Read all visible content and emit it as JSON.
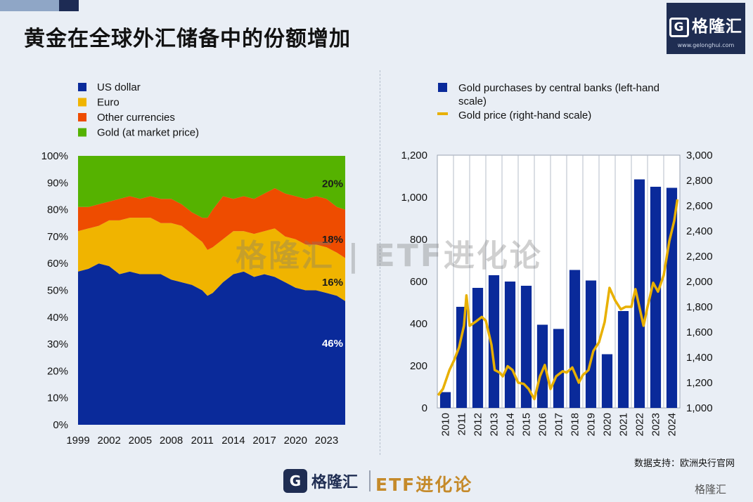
{
  "header": {
    "title": "黄金在全球外汇储备中的份额增加",
    "logo_text": "格隆汇",
    "logo_url": "www.gelonghui.com"
  },
  "colors": {
    "usd": "#0a2a9a",
    "euro": "#f0b400",
    "other": "#ee4c00",
    "gold": "#55b200",
    "bar": "#0a2a9a",
    "gold_price": "#e8b000"
  },
  "chart_data": [
    {
      "type": "area",
      "stacked": true,
      "percent": true,
      "x_ticks": [
        "1999",
        "2002",
        "2005",
        "2008",
        "2011",
        "2014",
        "2017",
        "2020",
        "2023"
      ],
      "y_ticks": [
        "0%",
        "10%",
        "20%",
        "30%",
        "40%",
        "50%",
        "60%",
        "70%",
        "80%",
        "90%",
        "100%"
      ],
      "ylim": [
        0,
        100
      ],
      "xlim": [
        1999,
        2024.8
      ],
      "legend": [
        "US dollar",
        "Euro",
        "Other currencies",
        "Gold (at market price)"
      ],
      "legend_position": "top-left",
      "x": [
        1999,
        2000,
        2001,
        2002,
        2003,
        2004,
        2005,
        2006,
        2007,
        2008,
        2009,
        2010,
        2011,
        2011.5,
        2012,
        2013,
        2014,
        2015,
        2016,
        2017,
        2018,
        2019,
        2020,
        2021,
        2022,
        2023,
        2024,
        2024.8
      ],
      "series": [
        {
          "name": "US dollar",
          "values": [
            57,
            58,
            60,
            59,
            56,
            57,
            56,
            56,
            56,
            54,
            53,
            52,
            50,
            48,
            49,
            53,
            56,
            57,
            55,
            56,
            55,
            53,
            51,
            50,
            50,
            49,
            48,
            46
          ]
        },
        {
          "name": "Euro",
          "values": [
            15,
            15,
            14,
            17,
            20,
            20,
            21,
            21,
            19,
            21,
            21,
            19,
            18,
            17,
            17,
            16,
            16,
            15,
            16,
            16,
            18,
            17,
            18,
            17,
            17,
            17,
            16,
            16
          ]
        },
        {
          "name": "Other currencies",
          "values": [
            9,
            8,
            8,
            7,
            8,
            8,
            7,
            8,
            9,
            9,
            8,
            8,
            9,
            12,
            14,
            16,
            12,
            13,
            13,
            14,
            15,
            16,
            16,
            17,
            18,
            18,
            17,
            18
          ]
        },
        {
          "name": "Gold (at market price)",
          "values": [
            19,
            19,
            18,
            17,
            16,
            15,
            16,
            15,
            16,
            16,
            18,
            21,
            23,
            23,
            20,
            15,
            16,
            15,
            16,
            14,
            12,
            14,
            15,
            16,
            15,
            16,
            19,
            20
          ]
        }
      ],
      "end_labels": {
        "usd": "46%",
        "euro": "16%",
        "other": "18%",
        "gold": "20%"
      }
    },
    {
      "type": "bar",
      "legend": [
        "Gold purchases by central banks (left-hand scale)",
        "Gold price (right-hand scale)"
      ],
      "legend_position": "top-left",
      "categories": [
        "2010",
        "2011",
        "2012",
        "2013",
        "2014",
        "2015",
        "2016",
        "2017",
        "2018",
        "2019",
        "2020",
        "2021",
        "2022",
        "2023",
        "2024"
      ],
      "values": [
        75,
        480,
        570,
        630,
        600,
        580,
        395,
        375,
        655,
        605,
        255,
        460,
        1085,
        1050,
        1045
      ],
      "ylim": [
        0,
        1200
      ],
      "y_ticks": [
        "0",
        "200",
        "400",
        "600",
        "800",
        "1,000",
        "1,200"
      ],
      "secondary_axis": {
        "type": "line",
        "name": "Gold price (right-hand scale)",
        "ylim": [
          1000,
          3000
        ],
        "y_ticks": [
          "1,000",
          "1,200",
          "1,400",
          "1,600",
          "1,800",
          "2,000",
          "2,200",
          "2,400",
          "2,600",
          "2,800",
          "3,000"
        ],
        "x": [
          2010,
          2010.3,
          2010.7,
          2011,
          2011.3,
          2011.6,
          2011.75,
          2011.95,
          2012.3,
          2012.7,
          2012.95,
          2013.3,
          2013.5,
          2013.8,
          2014,
          2014.3,
          2014.6,
          2014.95,
          2015.3,
          2015.6,
          2015.95,
          2016.3,
          2016.6,
          2016.95,
          2017.3,
          2017.7,
          2017.95,
          2018.3,
          2018.7,
          2018.95,
          2019.3,
          2019.6,
          2019.95,
          2020.3,
          2020.6,
          2020.95,
          2021.3,
          2021.6,
          2021.95,
          2022.2,
          2022.7,
          2022.95,
          2023.3,
          2023.6,
          2023.95,
          2024.3,
          2024.6,
          2024.8
        ],
        "values": [
          1100,
          1150,
          1300,
          1380,
          1480,
          1650,
          1890,
          1650,
          1680,
          1720,
          1690,
          1500,
          1300,
          1280,
          1250,
          1330,
          1300,
          1200,
          1190,
          1150,
          1070,
          1250,
          1340,
          1150,
          1250,
          1290,
          1280,
          1320,
          1200,
          1260,
          1300,
          1450,
          1520,
          1680,
          1950,
          1850,
          1780,
          1800,
          1800,
          1940,
          1650,
          1800,
          1990,
          1920,
          2050,
          2320,
          2480,
          2650
        ]
      }
    }
  ],
  "source": "数据支持：欧洲央行官网",
  "footer": {
    "logo_text": "格隆汇",
    "brand": "ETF进化论",
    "watermark": "格隆汇 | ETF进化论",
    "corner_mark": "格隆汇"
  }
}
